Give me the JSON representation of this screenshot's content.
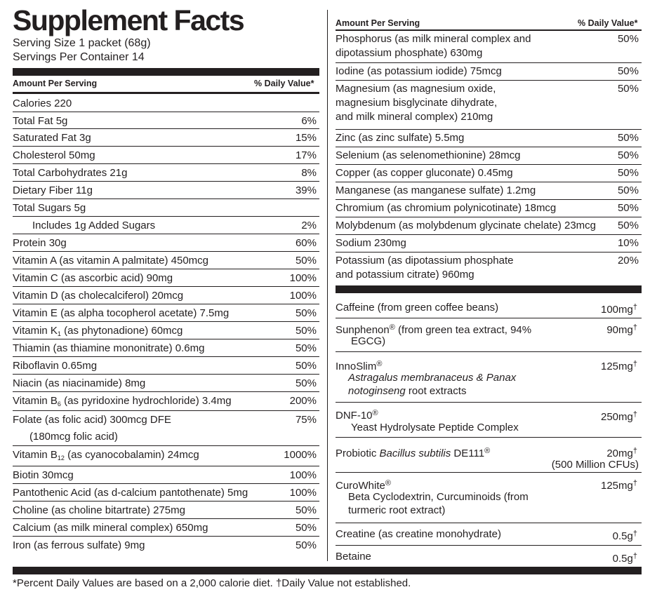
{
  "title": "Supplement Facts",
  "serving_size": "Serving Size 1 packet (68g)",
  "servings_per_container": "Servings Per Container 14",
  "header": {
    "amount": "Amount Per Serving",
    "dv": "% Daily Value*"
  },
  "left": {
    "calories": "Calories  220",
    "rows": [
      {
        "name": "Total Fat  5g",
        "dv": "6%"
      },
      {
        "name": "Saturated Fat  3g",
        "dv": "15%"
      },
      {
        "name": "Cholesterol  50mg",
        "dv": "17%"
      },
      {
        "name": "Total Carbohydrates  21g",
        "dv": "8%"
      },
      {
        "name": "Dietary Fiber  11g",
        "dv": "39%"
      },
      {
        "name": "Total Sugars  5g",
        "dv": ""
      },
      {
        "name": "Includes  1g Added Sugars",
        "dv": "2%"
      },
      {
        "name": "Protein  30g",
        "dv": "60%"
      },
      {
        "name": "Vitamin A (as vitamin A palmitate)  450mcg",
        "dv": "50%"
      },
      {
        "name": "Vitamin C (as ascorbic acid)  90mg",
        "dv": "100%"
      },
      {
        "name": "Vitamin D (as cholecalciferol)  20mcg",
        "dv": "100%"
      },
      {
        "name": "Vitamin E (as alpha tocopherol acetate)  7.5mg",
        "dv": "50%"
      },
      {
        "name_pre": "Vitamin K",
        "name_sub": "1",
        "name_post": " (as phytonadione)  60mcg",
        "dv": "50%"
      },
      {
        "name": "Thiamin (as thiamine mononitrate)  0.6mg",
        "dv": "50%"
      },
      {
        "name": "Riboflavin  0.65mg",
        "dv": "50%"
      },
      {
        "name": "Niacin (as niacinamide)  8mg",
        "dv": "50%"
      },
      {
        "name_pre": "Vitamin B",
        "name_sub": "6",
        "name_post": " (as pyridoxine hydrochloride)  3.4mg",
        "dv": "200%"
      },
      {
        "name": "Folate (as folic acid)  300mcg DFE",
        "name2": "(180mcg folic acid)",
        "dv": "75%"
      },
      {
        "name_pre": "Vitamin B",
        "name_sub": "12",
        "name_post": " (as cyanocobalamin)  24mcg",
        "dv": "1000%"
      },
      {
        "name": "Biotin  30mcg",
        "dv": "100%"
      },
      {
        "name": "Pantothenic Acid (as d-calcium pantothenate)  5mg",
        "dv": "100%"
      },
      {
        "name": "Choline (as choline bitartrate)  275mg",
        "dv": "50%"
      },
      {
        "name": "Calcium (as milk mineral complex)  650mg",
        "dv": "50%"
      },
      {
        "name": "Iron (as ferrous sulfate)  9mg",
        "dv": "50%"
      }
    ]
  },
  "right": {
    "rows": [
      {
        "l1": "Phosphorus (as milk mineral complex and",
        "l2": "dipotassium phosphate)  630mg",
        "dv": "50%"
      },
      {
        "l1": "Iodine (as potassium iodide)  75mcg",
        "dv": "50%"
      },
      {
        "l1": "Magnesium (as magnesium oxide,",
        "l2": "magnesium bisglycinate dihydrate,",
        "l3": "and milk mineral complex)  210mg",
        "dv": "50%"
      },
      {
        "l1": "Zinc (as zinc sulfate)  5.5mg",
        "dv": "50%"
      },
      {
        "l1": "Selenium (as selenomethionine)  28mcg",
        "dv": "50%"
      },
      {
        "l1": "Copper (as copper gluconate)  0.45mg",
        "dv": "50%"
      },
      {
        "l1": "Manganese (as manganese sulfate)  1.2mg",
        "dv": "50%"
      },
      {
        "l1": "Chromium (as chromium polynicotinate)  18mcg",
        "dv": "50%"
      },
      {
        "l1": "Molybdenum (as molybdenum glycinate chelate)  23mcg",
        "dv": "50%"
      },
      {
        "l1": "Sodium  230mg",
        "dv": "10%"
      },
      {
        "l1": "Potassium (as dipotassium phosphate",
        "l2": "and potassium citrate)  960mg",
        "dv": "20%"
      }
    ],
    "proprietary": {
      "caffeine": {
        "name": "Caffeine (from green coffee beans)",
        "amt": "100mg",
        "mark": "†"
      },
      "sunphenon": {
        "name": "Sunphenon",
        "reg": "®",
        "name_rest": " (from green tea extract, 94%",
        "l2": "EGCG)",
        "amt": "90mg",
        "mark": "†"
      },
      "innoslim": {
        "name": "InnoSlim",
        "reg": "®",
        "l2": "Astragalus membranaceus & Panax",
        "l3a": "notoginseng",
        "l3b": " root extracts",
        "amt": "125mg",
        "mark": "†"
      },
      "dnf": {
        "name": "DNF-10",
        "reg": "®",
        "l2": "Yeast Hydrolysate Peptide Complex",
        "amt": "250mg",
        "mark": "†"
      },
      "probiotic": {
        "name_a": "Probiotic ",
        "name_b": "Bacillus subtilis",
        "name_c": " DE111",
        "reg": "®",
        "amt": "20mg",
        "mark": "†",
        "amt2": "(500 Million CFUs)"
      },
      "curowhite": {
        "name": "CuroWhite",
        "reg": "®",
        "l2": "Beta Cyclodextrin, Curcuminoids (from",
        "l3": "turmeric root extract)",
        "amt": "125mg",
        "mark": "†"
      },
      "creatine": {
        "name": "Creatine (as creatine monohydrate)",
        "amt": "0.5g",
        "mark": "†"
      },
      "betaine": {
        "name": "Betaine",
        "amt": "0.5g",
        "mark": "†"
      }
    }
  },
  "footnote": "*Percent Daily Values are based on a 2,000 calorie diet. †Daily Value not established."
}
